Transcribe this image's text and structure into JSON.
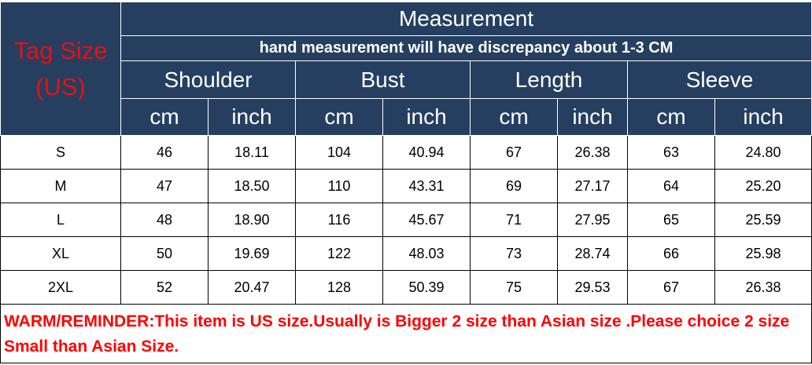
{
  "header": {
    "tag_size_line1": "Tag Size",
    "tag_size_line2": "(US)",
    "title": "Measurement",
    "note": "hand measurement will have discrepancy about 1-3 CM",
    "groups": [
      "Shoulder",
      "Bust",
      "Length",
      "Sleeve"
    ],
    "units": [
      "cm",
      "inch",
      "cm",
      "inch",
      "cm",
      "inch",
      "cm",
      "inch"
    ]
  },
  "rows": [
    {
      "size": "S",
      "values": [
        "46",
        "18.11",
        "104",
        "40.94",
        "67",
        "26.38",
        "63",
        "24.80"
      ]
    },
    {
      "size": "M",
      "values": [
        "47",
        "18.50",
        "110",
        "43.31",
        "69",
        "27.17",
        "64",
        "25.20"
      ]
    },
    {
      "size": "L",
      "values": [
        "48",
        "18.90",
        "116",
        "45.67",
        "71",
        "27.95",
        "65",
        "25.59"
      ]
    },
    {
      "size": "XL",
      "values": [
        "50",
        "19.69",
        "122",
        "48.03",
        "73",
        "28.74",
        "66",
        "25.98"
      ]
    },
    {
      "size": "2XL",
      "values": [
        "52",
        "20.47",
        "128",
        "50.39",
        "75",
        "29.53",
        "67",
        "26.38"
      ]
    }
  ],
  "reminder": "WARM/REMINDER:This item is US size.Usually is Bigger 2 size than Asian size .Please choice 2 size Small than Asian Size.",
  "colors": {
    "header_bg": "#263f61",
    "tag_text": "#e81010",
    "reminder_text": "#ff0000"
  }
}
